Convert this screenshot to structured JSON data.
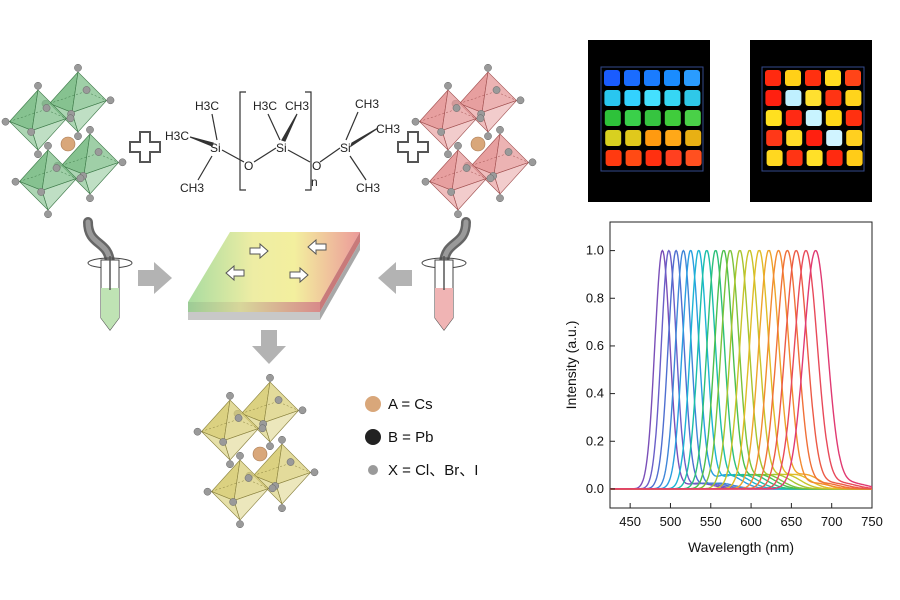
{
  "colors": {
    "green_crystal": "#7fbf8a",
    "red_crystal": "#e69a9a",
    "yellow_crystal": "#d9cf7a",
    "film_green": "#a9dca0",
    "film_yellow": "#f3efa6",
    "film_red": "#ec9a9a",
    "arrow_gray": "#b3b3b3",
    "a_site": "#d9a77a",
    "b_site": "#222222",
    "x_site": "#9a9a9a"
  },
  "molecule": {
    "left_group": [
      "H3C",
      "H3C",
      "CH3"
    ],
    "si_label": "Si",
    "o_label": "O",
    "repeat_group": [
      "H3C",
      "CH3"
    ],
    "repeat_n": "n",
    "right_group": [
      "CH3",
      "CH3",
      "CH3"
    ]
  },
  "legend": {
    "a_label": "A = Cs",
    "b_label": "B = Pb",
    "x_label": "X = Cl、Br、I"
  },
  "plus_sign": "+",
  "photos": {
    "left_grid_colors": [
      [
        "#1a5cff",
        "#1a6cff",
        "#1a7cff",
        "#1a8cff",
        "#2a9cff"
      ],
      [
        "#29c6f0",
        "#33d2ff",
        "#44e0ff",
        "#36d6f4",
        "#2fc8e8"
      ],
      [
        "#2ec23a",
        "#3ad04a",
        "#36c440",
        "#40cc3c",
        "#4ad048"
      ],
      [
        "#d8d020",
        "#e0c81c",
        "#ff9a10",
        "#ffa818",
        "#e8b014"
      ],
      [
        "#ff3a10",
        "#ff4a14",
        "#ff3010",
        "#ff4020",
        "#ff5020"
      ]
    ],
    "right_grid_colors": [
      [
        "#ff2a10",
        "#ffd018",
        "#ff3010",
        "#ffdc20",
        "#ff4418"
      ],
      [
        "#ff2010",
        "#bff0ff",
        "#ffe030",
        "#ff3414",
        "#ffd41c"
      ],
      [
        "#ffe020",
        "#ff2a14",
        "#c8f4ff",
        "#ffd818",
        "#ff3010"
      ],
      [
        "#ff3818",
        "#ffdc28",
        "#ff2010",
        "#d0f4ff",
        "#ffd020"
      ],
      [
        "#ffd820",
        "#ff3414",
        "#ffe028",
        "#ff2a10",
        "#ffcc18"
      ]
    ]
  },
  "chart_data": {
    "type": "line",
    "xlabel": "Wavelength (nm)",
    "ylabel": "Intensity (a.u.)",
    "xlim": [
      425,
      750
    ],
    "ylim": [
      -0.08,
      1.12
    ],
    "xticks": [
      450,
      500,
      550,
      600,
      650,
      700,
      750
    ],
    "yticks": [
      0.0,
      0.2,
      0.4,
      0.6,
      0.8,
      1.0
    ],
    "ytick_labels": [
      "0.0",
      "0.2",
      "0.4",
      "0.6",
      "0.8",
      "1.0"
    ],
    "grid": false,
    "series": [
      {
        "peak": 490,
        "fwhm": 22,
        "color": "#7a4fb8"
      },
      {
        "peak": 498,
        "fwhm": 22,
        "color": "#6a5fc8"
      },
      {
        "peak": 507,
        "fwhm": 23,
        "color": "#4f6fd0"
      },
      {
        "peak": 516,
        "fwhm": 23,
        "color": "#3f86d8"
      },
      {
        "peak": 525,
        "fwhm": 24,
        "color": "#2a9ee0"
      },
      {
        "peak": 535,
        "fwhm": 24,
        "color": "#1cb4d4"
      },
      {
        "peak": 545,
        "fwhm": 25,
        "color": "#1abfa8"
      },
      {
        "peak": 556,
        "fwhm": 25,
        "color": "#2cc07a"
      },
      {
        "peak": 566,
        "fwhm": 26,
        "color": "#4cbf4c"
      },
      {
        "peak": 574,
        "fwhm": 26,
        "color": "#7cc23a"
      },
      {
        "peak": 586,
        "fwhm": 27,
        "color": "#a8c42e"
      },
      {
        "peak": 598,
        "fwhm": 28,
        "color": "#c8c42a"
      },
      {
        "peak": 610,
        "fwhm": 28,
        "color": "#e0bc26"
      },
      {
        "peak": 622,
        "fwhm": 29,
        "color": "#eea42a"
      },
      {
        "peak": 634,
        "fwhm": 30,
        "color": "#f28a30"
      },
      {
        "peak": 645,
        "fwhm": 31,
        "color": "#f07038"
      },
      {
        "peak": 656,
        "fwhm": 32,
        "color": "#ec5a46"
      },
      {
        "peak": 668,
        "fwhm": 33,
        "color": "#e84a5a"
      },
      {
        "peak": 680,
        "fwhm": 34,
        "color": "#e03a72"
      }
    ]
  }
}
